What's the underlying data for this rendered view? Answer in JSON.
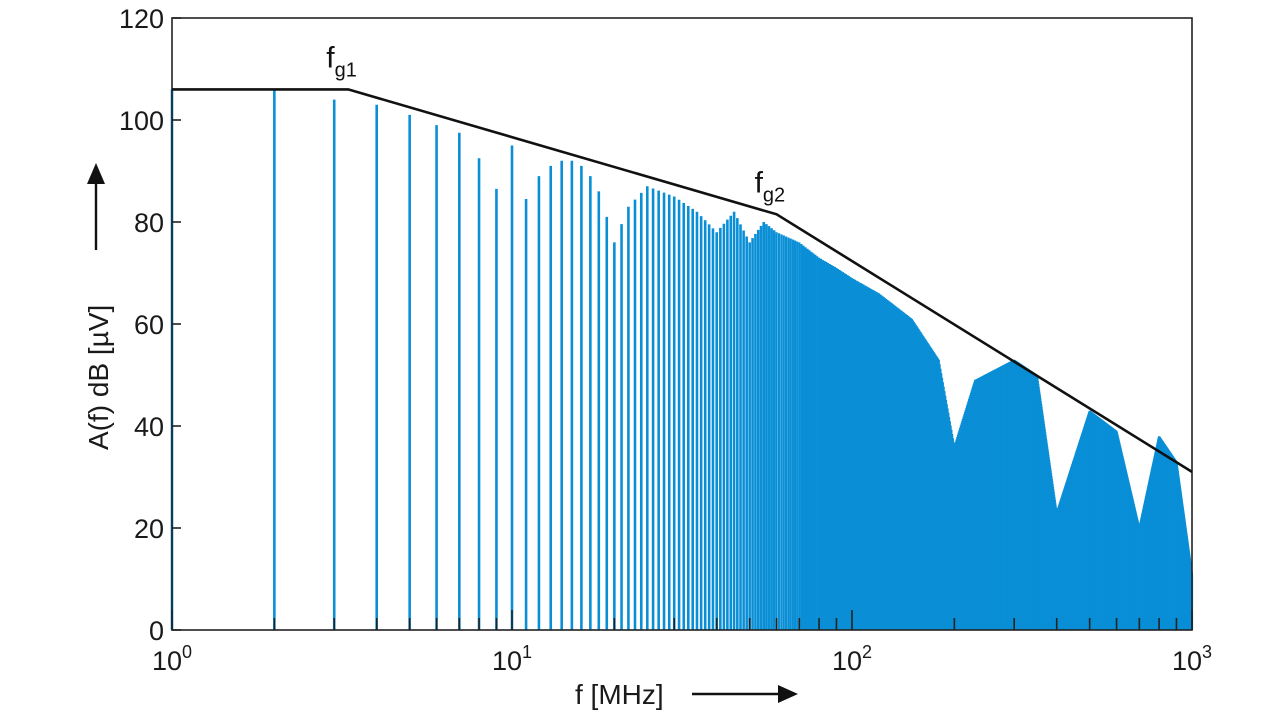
{
  "chart_data": {
    "type": "bar",
    "xscale": "log",
    "xlim": [
      1,
      1000
    ],
    "ylim": [
      0,
      120
    ],
    "xlabel": "f [MHz]",
    "ylabel": "A(f)  dB [µV]",
    "yticks": [
      "0",
      "20",
      "40",
      "60",
      "80",
      "100",
      "120"
    ],
    "xticks": [
      {
        "base": "10",
        "exp": "0",
        "value": 1
      },
      {
        "base": "10",
        "exp": "1",
        "value": 10
      },
      {
        "base": "10",
        "exp": "2",
        "value": 100
      },
      {
        "base": "10",
        "exp": "3",
        "value": 1000
      }
    ],
    "grid": false,
    "spectral_lines": {
      "fundamental_mhz": 1,
      "points": [
        [
          1,
          106
        ],
        [
          2,
          106
        ],
        [
          3,
          104
        ],
        [
          4,
          103
        ],
        [
          5,
          101
        ],
        [
          6,
          99
        ],
        [
          7,
          97.5
        ],
        [
          8,
          92.5
        ],
        [
          9,
          86.5
        ],
        [
          10,
          95
        ],
        [
          11,
          84.5
        ],
        [
          12,
          89
        ],
        [
          13,
          91
        ],
        [
          14,
          92
        ],
        [
          15,
          92
        ],
        [
          16,
          91
        ],
        [
          17,
          89
        ],
        [
          18,
          86
        ],
        [
          19,
          81
        ],
        [
          20,
          76
        ],
        [
          22,
          83
        ],
        [
          25,
          87
        ],
        [
          30,
          85
        ],
        [
          35,
          82
        ],
        [
          40,
          78
        ],
        [
          45,
          82
        ],
        [
          50,
          76
        ],
        [
          55,
          80
        ],
        [
          60,
          78
        ],
        [
          70,
          76
        ],
        [
          80,
          73
        ],
        [
          90,
          71
        ],
        [
          100,
          69
        ],
        [
          120,
          66
        ],
        [
          150,
          61
        ],
        [
          180,
          53
        ],
        [
          200,
          36
        ],
        [
          230,
          49
        ],
        [
          300,
          53
        ],
        [
          350,
          50
        ],
        [
          400,
          23
        ],
        [
          500,
          43
        ],
        [
          600,
          39
        ],
        [
          700,
          20
        ],
        [
          800,
          38
        ],
        [
          900,
          33
        ],
        [
          1000,
          11
        ]
      ]
    },
    "envelope": {
      "name": "asymptotes",
      "points": [
        [
          1,
          106
        ],
        [
          3.3,
          106
        ],
        [
          60,
          81.5
        ],
        [
          1000,
          31
        ]
      ]
    },
    "annotations": [
      {
        "text": "f",
        "sub": "g1",
        "x": 3.3,
        "y": 106
      },
      {
        "text": "f",
        "sub": "g2",
        "x": 60,
        "y": 81.5
      }
    ],
    "colors": {
      "lines": "#0a8fd6",
      "envelope": "#111111",
      "axis": "#222222"
    }
  }
}
